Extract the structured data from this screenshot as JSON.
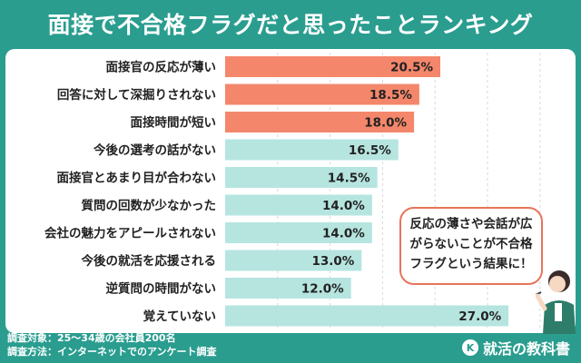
{
  "title": "面接で不合格フラグだと思ったことランキング",
  "callout": {
    "line1": "反応の薄さや会話が広",
    "line2": "がらないことが不合格",
    "line3": "フラグという結果に！"
  },
  "footnote": {
    "line1": "調査対象：25～34歳の会社員200名",
    "line2": "調査方法：インターネットでのアンケート調査"
  },
  "logo": {
    "mark": "K",
    "text": "就活の教科書"
  },
  "colors": {
    "background": "#2a9d8f",
    "highlight": "#f4876b",
    "normal": "#b6e5e0"
  },
  "chart_data": {
    "type": "bar",
    "orientation": "horizontal",
    "categories": [
      "面接官の反応が薄い",
      "回答に対して深掘りされない",
      "面接時間が短い",
      "今後の選考の話がない",
      "面接官とあまり目が合わない",
      "質問の回数が少なかった",
      "会社の魅力をアピールされない",
      "今後の就活を応援される",
      "逆質問の時間がない",
      "覚えていない"
    ],
    "values": [
      20.5,
      18.5,
      18.0,
      16.5,
      14.5,
      14.0,
      14.0,
      13.0,
      12.0,
      27.0
    ],
    "labels": [
      "20.5%",
      "18.5%",
      "18.0%",
      "16.5%",
      "14.5%",
      "14.0%",
      "14.0%",
      "13.0%",
      "12.0%",
      "27.0%"
    ],
    "highlighted": [
      true,
      true,
      true,
      false,
      false,
      false,
      false,
      false,
      false,
      false
    ],
    "unit": "%",
    "xlim": [
      0,
      30
    ],
    "grid": true
  }
}
